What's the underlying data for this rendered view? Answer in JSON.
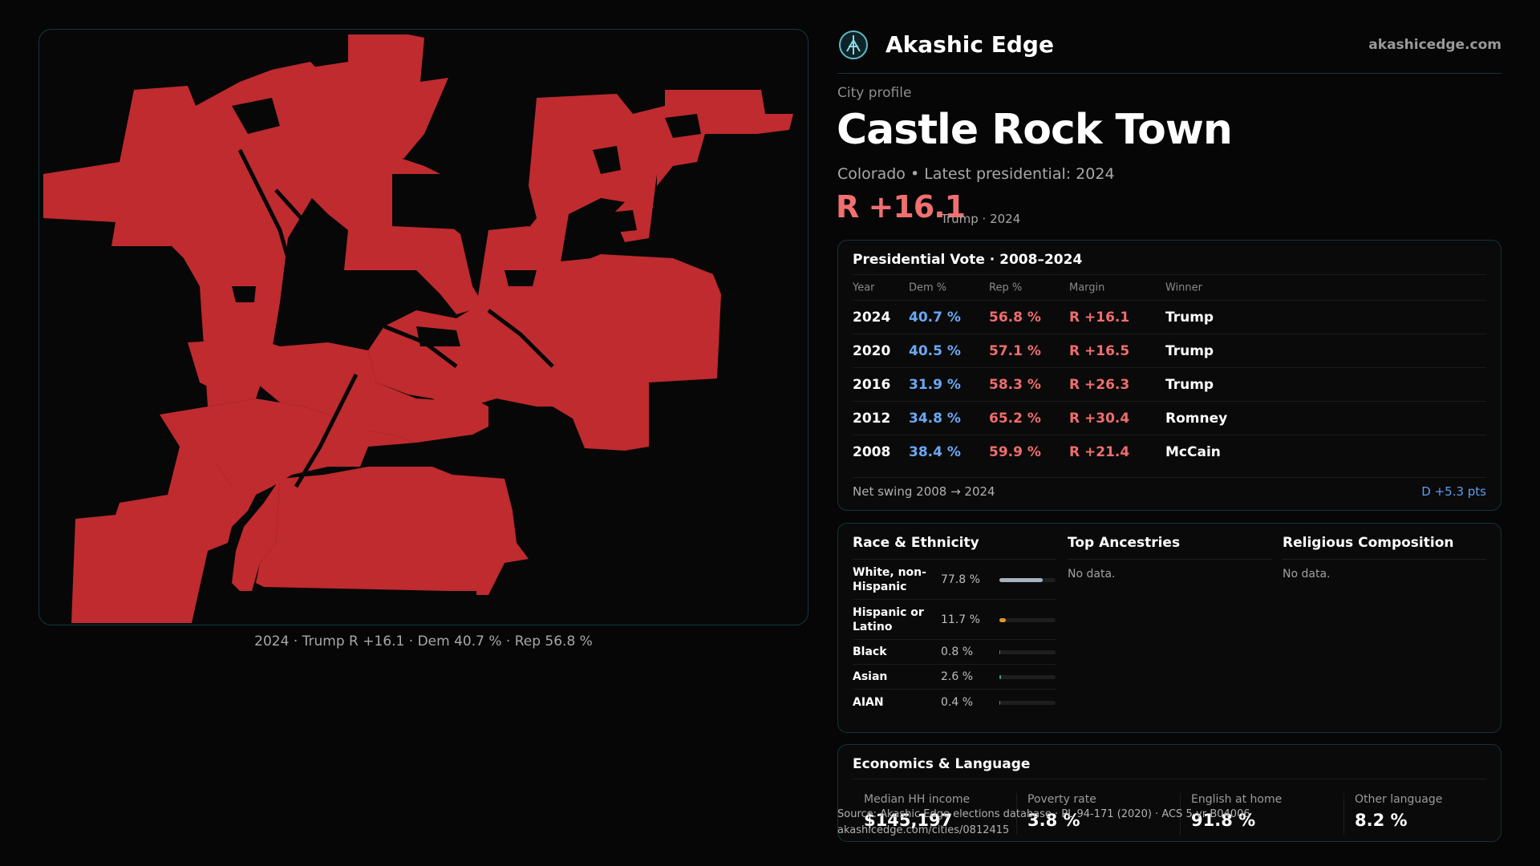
{
  "brand": {
    "name": "Akashic Edge",
    "domain": "akashicedge.com",
    "logo": "akashic-edge-logo"
  },
  "profile": {
    "eyebrow": "City profile",
    "title": "Castle Rock Town",
    "subtitle": "Colorado • Latest presidential: 2024",
    "margin": "R +16.1",
    "margin_note": "Trump · 2024"
  },
  "map": {
    "caption": "2024 · Trump R +16.1 · Dem 40.7 % · Rep 56.8 %",
    "fill_color": "#bf2b2e",
    "background_color": "#070707"
  },
  "presidential": {
    "title": "Presidential Vote · 2008–2024",
    "headers": {
      "year": "Year",
      "dem": "Dem %",
      "rep": "Rep %",
      "margin": "Margin",
      "winner": "Winner"
    },
    "rows": [
      {
        "year": "2024",
        "dem": "40.7 %",
        "rep": "56.8 %",
        "margin": "R +16.1",
        "winner": "Trump"
      },
      {
        "year": "2020",
        "dem": "40.5 %",
        "rep": "57.1 %",
        "margin": "R +16.5",
        "winner": "Trump"
      },
      {
        "year": "2016",
        "dem": "31.9 %",
        "rep": "58.3 %",
        "margin": "R +26.3",
        "winner": "Trump"
      },
      {
        "year": "2012",
        "dem": "34.8 %",
        "rep": "65.2 %",
        "margin": "R +30.4",
        "winner": "Romney"
      },
      {
        "year": "2008",
        "dem": "38.4 %",
        "rep": "59.9 %",
        "margin": "R +21.4",
        "winner": "McCain"
      }
    ],
    "swing_label": "Net swing 2008 → 2024",
    "swing_value": "D +5.3 pts"
  },
  "race": {
    "title": "Race & Ethnicity",
    "rows": [
      {
        "label": "White, non-Hispanic",
        "value": "77.8 %",
        "share": 0.778,
        "color": "#a9b3bf"
      },
      {
        "label": "Hispanic or Latino",
        "value": "11.7 %",
        "share": 0.117,
        "color": "#e0962a"
      },
      {
        "label": "Black",
        "value": "0.8 %",
        "share": 0.008,
        "color": "#7a6a9a"
      },
      {
        "label": "Asian",
        "value": "2.6 %",
        "share": 0.026,
        "color": "#2aa88a"
      },
      {
        "label": "AIAN",
        "value": "0.4 %",
        "share": 0.004,
        "color": "#8a7a5a"
      }
    ]
  },
  "ancestries": {
    "title": "Top Ancestries",
    "empty": "No data."
  },
  "religion": {
    "title": "Religious Composition",
    "empty": "No data."
  },
  "economics": {
    "title": "Economics & Language",
    "cells": [
      {
        "label": "Median HH income",
        "value": "$145,197"
      },
      {
        "label": "Poverty rate",
        "value": "3.8 %"
      },
      {
        "label": "English at home",
        "value": "91.8 %"
      },
      {
        "label": "Other language",
        "value": "8.2 %"
      }
    ]
  },
  "footer": {
    "source": "Source: Akashic Edge elections database · PL 94-171 (2020) · ACS 5-yr B04006",
    "url": "akashicedge.com/cities/0812415"
  },
  "colors": {
    "dem": "#6aa8f5",
    "rep": "#f06d6d",
    "accent_border": "#143338"
  }
}
